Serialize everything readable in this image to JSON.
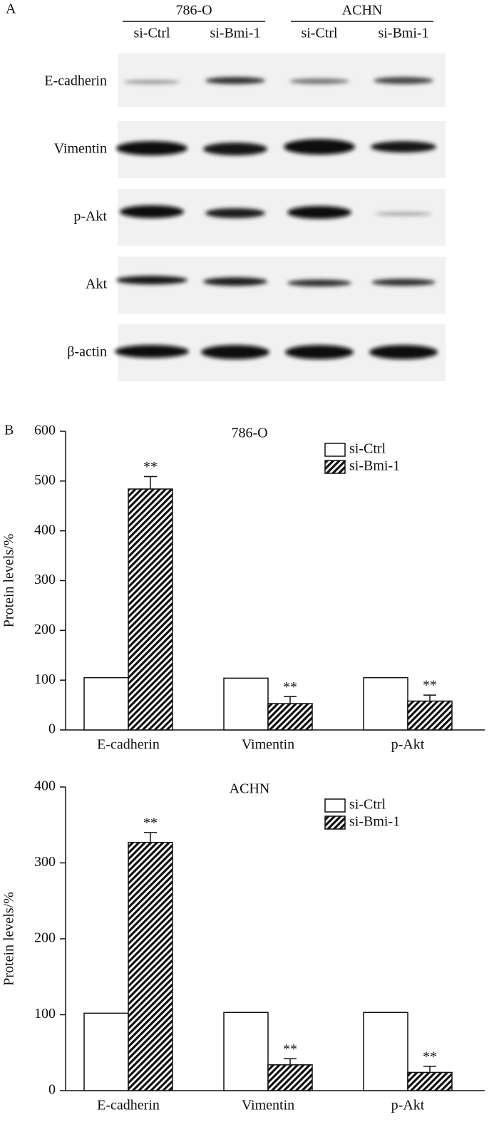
{
  "panel_a": {
    "label": "A",
    "groups": [
      {
        "name": "786-O",
        "lanes": [
          "si-Ctrl",
          "si-Bmi-1"
        ]
      },
      {
        "name": "ACHN",
        "lanes": [
          "si-Ctrl",
          "si-Bmi-1"
        ]
      }
    ],
    "rows": [
      "E-cadherin",
      "Vimentin",
      "p-Akt",
      "Akt",
      "β-actin"
    ]
  },
  "panel_b": {
    "label": "B"
  },
  "chart_data": [
    {
      "type": "bar",
      "title": "786-O",
      "ylabel": "Protein levels/%",
      "categories": [
        "E-cadherin",
        "Vimentin",
        "p-Akt"
      ],
      "series": [
        {
          "name": "si-Ctrl",
          "color": "#ffffff",
          "values": [
            105,
            104,
            105
          ]
        },
        {
          "name": "si-Bmi-1",
          "color": "#000000",
          "pattern": "hatch",
          "values": [
            484,
            53,
            58
          ],
          "errors": [
            25,
            14,
            12
          ],
          "annotations": [
            "**",
            "**",
            "**"
          ]
        }
      ],
      "ylim": [
        0,
        600
      ],
      "yticks": [
        0,
        100,
        200,
        300,
        400,
        500,
        600
      ],
      "legend": "upper right"
    },
    {
      "type": "bar",
      "title": "ACHN",
      "ylabel": "Protein levels/%",
      "categories": [
        "E-cadherin",
        "Vimentin",
        "p-Akt"
      ],
      "series": [
        {
          "name": "si-Ctrl",
          "color": "#ffffff",
          "values": [
            102,
            103,
            103
          ]
        },
        {
          "name": "si-Bmi-1",
          "color": "#000000",
          "pattern": "hatch",
          "values": [
            327,
            34,
            24
          ],
          "errors": [
            13,
            8,
            8
          ],
          "annotations": [
            "**",
            "**",
            "**"
          ]
        }
      ],
      "ylim": [
        0,
        400
      ],
      "yticks": [
        0,
        100,
        200,
        300,
        400
      ],
      "legend": "upper right"
    }
  ]
}
